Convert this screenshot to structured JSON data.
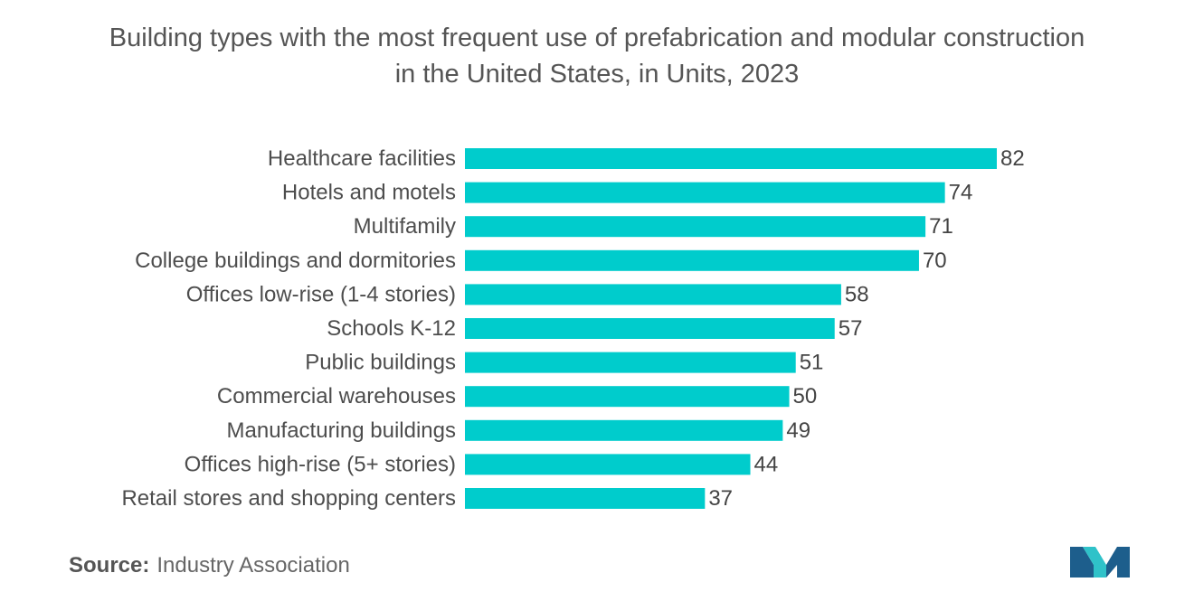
{
  "title_line1": "Building types with the most frequent use of prefabrication and modular construction",
  "title_line2": "in the United States, in Units, 2023",
  "source_label": "Source:",
  "source_value": "Industry Association",
  "logo_icon": "mordor-intelligence-logo-icon",
  "colors": {
    "bar": "#00CCCC",
    "logo_dark": "#1d5e8c",
    "logo_light": "#2fc2c9"
  },
  "chart_data": {
    "type": "bar",
    "orientation": "horizontal",
    "title": "Building types with the most frequent use of prefabrication and modular construction in the United States, in Units, 2023",
    "categories": [
      "Healthcare facilities",
      "Hotels and motels",
      "Multifamily",
      "College buildings and dormitories",
      "Offices low-rise (1-4 stories)",
      "Schools K-12",
      "Public buildings",
      "Commercial warehouses",
      "Manufacturing buildings",
      "Offices high-rise (5+ stories)",
      "Retail stores and shopping centers"
    ],
    "values": [
      82,
      74,
      71,
      70,
      58,
      57,
      51,
      50,
      49,
      44,
      37
    ],
    "xlim": [
      0,
      82
    ],
    "xlabel": "",
    "ylabel": "",
    "grid": false,
    "legend": "none"
  }
}
